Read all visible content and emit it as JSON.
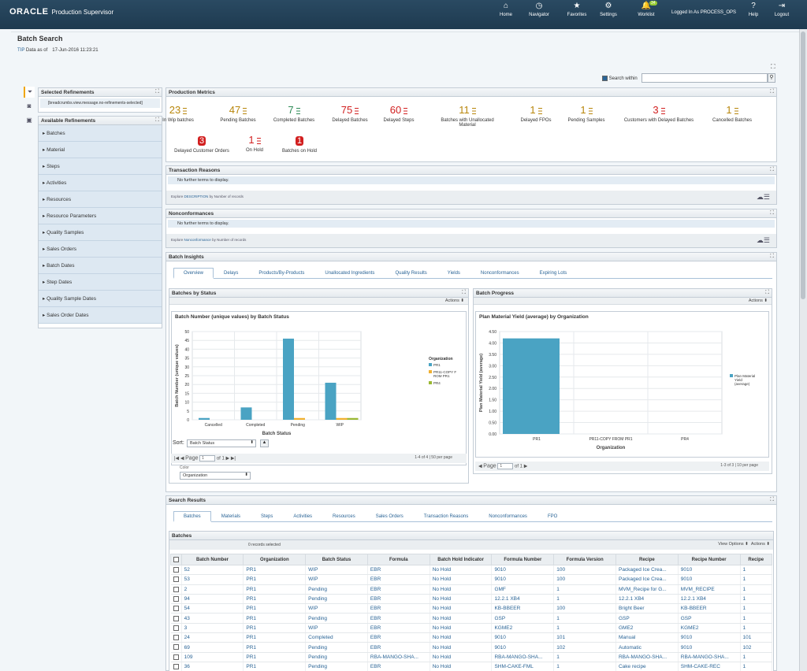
{
  "header": {
    "logo": "ORACLE",
    "app": "Production Supervisor",
    "logged_in": "Logged In As PROCESS_OPS",
    "nav": [
      {
        "label": "Home",
        "icon": "home-icon",
        "glyph": "⌂"
      },
      {
        "label": "Navigator",
        "icon": "navigator-icon",
        "glyph": "◷"
      },
      {
        "label": "Favorites",
        "icon": "star-icon",
        "glyph": "★"
      },
      {
        "label": "Settings",
        "icon": "gear-icon",
        "glyph": "⚙"
      },
      {
        "label": "Worklist",
        "icon": "bell-icon",
        "glyph": "🔔",
        "badge": "34"
      }
    ],
    "help": "Help",
    "logout": "Logout"
  },
  "page": {
    "title": "Batch Search",
    "tip": "TIP",
    "data_as_of": "Data as of",
    "timestamp": "17-Jun-2016 11:23:21",
    "search_within": "Search within"
  },
  "refinements": {
    "selected_title": "Selected Refinements",
    "breadcrumb": "[breadcrumbs.view.message.no-refinements-selected]",
    "available_title": "Available Refinements",
    "items": [
      "Batches",
      "Material",
      "Steps",
      "Activities",
      "Resources",
      "Resource Parameters",
      "Quality Samples",
      "Sales Orders",
      "Batch Dates",
      "Step Dates",
      "Quality Sample Dates",
      "Sales Order Dates"
    ]
  },
  "metrics": {
    "title": "Production Metrics",
    "items": [
      {
        "value": "23",
        "label": "In Wip batches",
        "color": "#b8860b"
      },
      {
        "value": "47",
        "label": "Pending Batches",
        "color": "#b8860b"
      },
      {
        "value": "7",
        "label": "Completed Batches",
        "color": "#2e8b57"
      },
      {
        "value": "75",
        "label": "Delayed Batches",
        "color": "#d21f1f"
      },
      {
        "value": "60",
        "label": "Delayed Steps",
        "color": "#d21f1f"
      },
      {
        "value": "11",
        "label": "Batches with Unallocated Material",
        "color": "#b8860b"
      },
      {
        "value": "1",
        "label": "Delayed FPOs",
        "color": "#b8860b"
      },
      {
        "value": "1",
        "label": "Pending Samples",
        "color": "#b8860b"
      },
      {
        "value": "3",
        "label": "Customers with Delayed Batches",
        "color": "#d21f1f"
      },
      {
        "value": "1",
        "label": "Cancelled Batches",
        "color": "#b8860b"
      },
      {
        "value": "3",
        "label": "Delayed Customer Orders",
        "color": "#d21f1f",
        "boxed": true
      },
      {
        "value": "1",
        "label": "On Hold",
        "color": "#d21f1f"
      },
      {
        "value": "1",
        "label": "Batches on Hold",
        "color": "#d21f1f",
        "boxed": true
      }
    ]
  },
  "transaction": {
    "title": "Transaction Reasons",
    "empty": "No further terms to display.",
    "explore": "Explore",
    "field": "DESCRIPTION",
    "by": "by Number of records"
  },
  "nonconf": {
    "title": "Nonconformances",
    "empty": "No further terms to display.",
    "explore": "Explore",
    "field": "Nonconformance",
    "by": "by Number of records"
  },
  "insights": {
    "title": "Batch Insights",
    "tabs": [
      "Overview",
      "Delays",
      "Products/By-Products",
      "Unallocated Ingredients",
      "Quality Results",
      "Yields",
      "Nonconformances",
      "Expiring Lots"
    ]
  },
  "status_chart": {
    "panel": "Batches by Status",
    "actions": "Actions",
    "sort_label": "Sort:",
    "sort_value": "Batch Status",
    "page": "Page",
    "page_num": "1",
    "of": "of 1",
    "count": "1-4 of 4",
    "per_page": "50 per page",
    "color_label": "Color",
    "color_value": "Organization"
  },
  "progress_chart": {
    "panel": "Batch Progress",
    "actions": "Actions",
    "page": "Page",
    "page_num": "1",
    "of": "of 1",
    "count": "1-3 of 3",
    "per_page": "10 per page"
  },
  "chart_data": [
    {
      "type": "bar",
      "title": "Batch Number (unique values) by Batch Status",
      "xlabel": "Batch Status",
      "ylabel": "Batch Number (unique values)",
      "ylim": [
        0,
        50
      ],
      "yticks": [
        0,
        5,
        10,
        15,
        20,
        25,
        30,
        35,
        40,
        45,
        50
      ],
      "categories": [
        "Cancelled",
        "Completed",
        "Pending",
        "WIP"
      ],
      "legend_title": "Organization",
      "series": [
        {
          "name": "PR1",
          "color": "#4aa3c3",
          "values": [
            1,
            7,
            46,
            21
          ]
        },
        {
          "name": "PR11-COPY FROM PR1",
          "color": "#f0b030",
          "values": [
            0,
            0,
            1,
            1
          ]
        },
        {
          "name": "PR4",
          "color": "#9ab833",
          "values": [
            0,
            0,
            0,
            1
          ]
        }
      ]
    },
    {
      "type": "bar",
      "title": "Plan Material Yield (average) by Organization",
      "xlabel": "Organization",
      "ylabel": "Plan Material Yield (average)",
      "ylim": [
        0,
        4.5
      ],
      "yticks": [
        0,
        0.5,
        1,
        1.5,
        2,
        2.5,
        3,
        3.5,
        4,
        4.5
      ],
      "categories": [
        "PR1",
        "PR11-COPY FROM PR1",
        "PR4"
      ],
      "legend": "Plan Material Yield (average)",
      "series": [
        {
          "name": "Plan Material Yield (average)",
          "color": "#4aa3c3",
          "values": [
            4.2,
            0,
            0
          ]
        }
      ]
    }
  ],
  "results": {
    "title": "Search Results",
    "tabs": [
      "Batches",
      "Materials",
      "Steps",
      "Activities",
      "Resources",
      "Sales Orders",
      "Transaction Reasons",
      "Nonconformances",
      "FPO"
    ],
    "table_title": "Batches",
    "selected": "0 records selected",
    "view_options": "View Options",
    "actions": "Actions",
    "columns": [
      "Batch Number",
      "Organization",
      "Batch Status",
      "Formula",
      "Batch Hold Indicator",
      "Formula Number",
      "Formula Version",
      "Recipe",
      "Recipe Number",
      "Recipe"
    ],
    "rows": [
      [
        "52",
        "PR1",
        "WIP",
        "EBR",
        "No Hold",
        "9010",
        "100",
        "Packaged Ice Crea...",
        "9010",
        "1"
      ],
      [
        "53",
        "PR1",
        "WIP",
        "EBR",
        "No Hold",
        "9010",
        "100",
        "Packaged Ice Crea...",
        "9010",
        "1"
      ],
      [
        "2",
        "PR1",
        "Pending",
        "EBR",
        "No Hold",
        "GMF",
        "1",
        "MVM_Recipe for G...",
        "MVM_RECIPE",
        "1"
      ],
      [
        "94",
        "PR1",
        "Pending",
        "EBR",
        "No Hold",
        "12.2.1 XB4",
        "1",
        "12.2.1 XB4",
        "12.2.1 XB4",
        "1"
      ],
      [
        "54",
        "PR1",
        "WIP",
        "EBR",
        "No Hold",
        "KB-BBEER",
        "100",
        "Bright Beer",
        "KB-BBEER",
        "1"
      ],
      [
        "43",
        "PR1",
        "Pending",
        "EBR",
        "No Hold",
        "GSP",
        "1",
        "GSP",
        "GSP",
        "1"
      ],
      [
        "3",
        "PR1",
        "WIP",
        "EBR",
        "No Hold",
        "KGME2",
        "1",
        "GME2",
        "KGME2",
        "1"
      ],
      [
        "24",
        "PR1",
        "Completed",
        "EBR",
        "No Hold",
        "9010",
        "101",
        "Manual",
        "9010",
        "101"
      ],
      [
        "69",
        "PR1",
        "Pending",
        "EBR",
        "No Hold",
        "9010",
        "102",
        "Automatic",
        "9010",
        "102"
      ],
      [
        "109",
        "PR1",
        "Pending",
        "RBA-MANGO-SHA...",
        "No Hold",
        "RBA-MANGO-SHA...",
        "1",
        "RBA-MANGO-SHA...",
        "RBA-MANGO-SHA...",
        "1"
      ],
      [
        "36",
        "PR1",
        "Pending",
        "EBR",
        "No Hold",
        "SHM-CAKE-FML",
        "1",
        "Cake recipe",
        "SHM-CAKE-REC",
        "1"
      ]
    ]
  }
}
